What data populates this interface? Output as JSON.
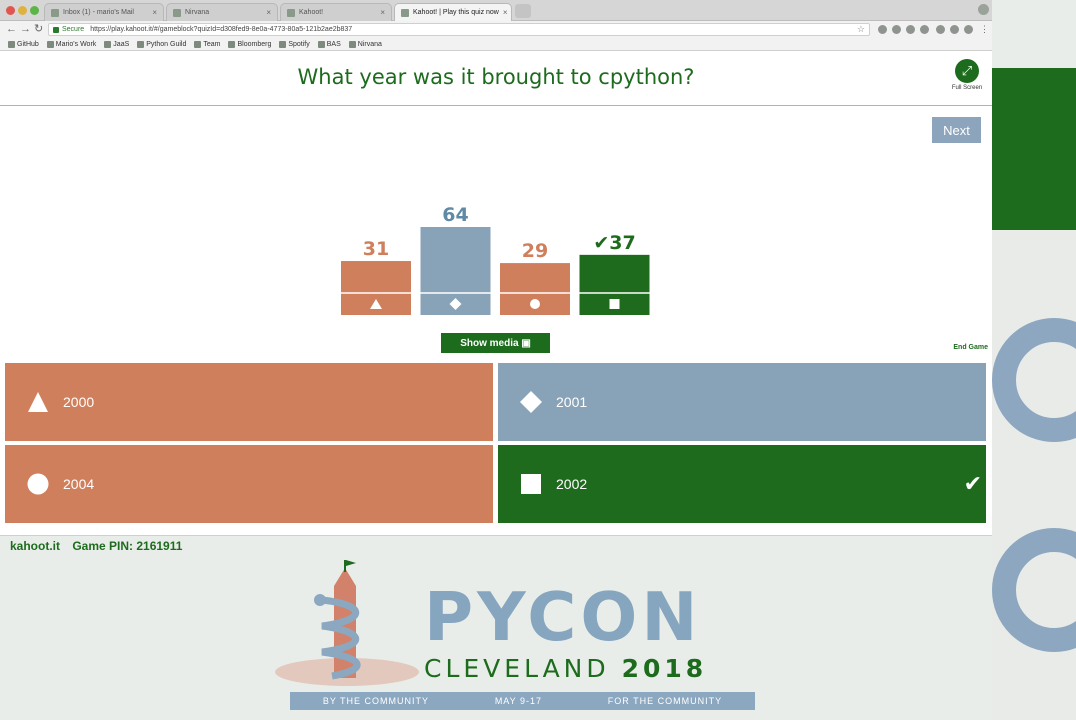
{
  "browser": {
    "tabs": [
      {
        "label": "Inbox (1) - mario's Mail"
      },
      {
        "label": "Nirvana"
      },
      {
        "label": "Kahoot!"
      },
      {
        "label": "Kahoot! | Play this quiz now"
      }
    ],
    "url_secure": "Secure",
    "url": "https://play.kahoot.it/#/gameblock?quizId=d308fed9-8e0a-4773-80a5-121b2ae2b837",
    "bookmarks": [
      {
        "label": "GitHub"
      },
      {
        "label": "Mario's Work"
      },
      {
        "label": "JaaS"
      },
      {
        "label": "Python Guild"
      },
      {
        "label": "Team"
      },
      {
        "label": "Bloomberg"
      },
      {
        "label": "Spotify"
      },
      {
        "label": "BAS"
      },
      {
        "label": "Nirvana"
      }
    ]
  },
  "kahoot": {
    "question": "What year was it brought to cpython?",
    "fullscreen_label": "Full Screen",
    "next_label": "Next",
    "show_media_label": "Show media",
    "end_game_label": "End Game",
    "answers": [
      {
        "text": "2000",
        "shape": "triangle",
        "color": "#cf7f5b",
        "correct": false
      },
      {
        "text": "2001",
        "shape": "diamond",
        "color": "#88a3b8",
        "correct": false
      },
      {
        "text": "2004",
        "shape": "circle",
        "color": "#cf7f5b",
        "correct": false
      },
      {
        "text": "2002",
        "shape": "square",
        "color": "#1f6b1e",
        "correct": true
      }
    ],
    "footer": {
      "brand": "kahoot.it",
      "pin_label": "Game PIN: 2161911"
    }
  },
  "chart_data": {
    "type": "bar",
    "categories": [
      "triangle",
      "diamond",
      "circle",
      "square"
    ],
    "values": [
      31,
      64,
      29,
      37
    ],
    "correct": [
      false,
      false,
      false,
      true
    ],
    "colors": [
      "#cf7f5b",
      "#88a3b8",
      "#cf7f5b",
      "#1f6b1e"
    ],
    "label_colors": [
      "#cf7f5b",
      "#5f8aa6",
      "#cf7f5b",
      "#1f6b1e"
    ],
    "title": "",
    "xlabel": "",
    "ylabel": "",
    "ylim": [
      0,
      64
    ]
  },
  "pycon": {
    "word": "PYCON",
    "city": "CLEVELAND",
    "year": "2018",
    "ribbon": [
      "BY THE COMMUNITY",
      "MAY 9-17",
      "FOR THE COMMUNITY"
    ]
  }
}
